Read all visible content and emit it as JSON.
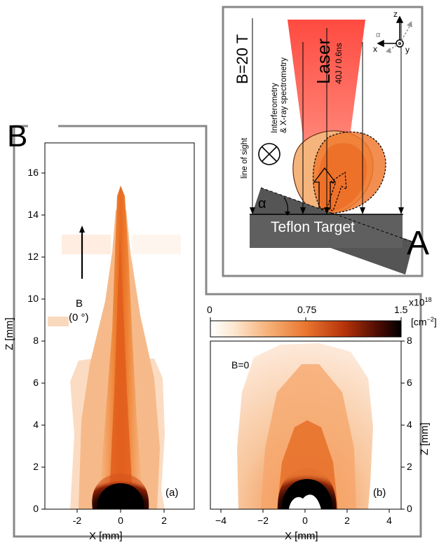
{
  "panel_labels": {
    "A": "A",
    "B": "B"
  },
  "schematic": {
    "field": "B=20 T",
    "diagnostics_line1": "Interferometry",
    "diagnostics_line2": "& X-ray spectrometry",
    "line_of_sight": "line of sight",
    "laser_label": "Laser",
    "laser_params": "40J / 0.6ns",
    "alpha": "α",
    "target": "Teflon Target",
    "axes": {
      "z": "z",
      "x": "x",
      "y": "y",
      "alpha_small": "α"
    }
  },
  "plot_a": {
    "label": "(a)",
    "annotation_line1": "B",
    "annotation_line2": "(0 °)",
    "xlabel": "X [mm]",
    "ylabel": "Z [mm]",
    "xticks": [
      "-2",
      "0",
      "2"
    ],
    "yticks": [
      "0",
      "2",
      "4",
      "6",
      "8",
      "10",
      "12",
      "14",
      "16"
    ]
  },
  "plot_b": {
    "label": "(b)",
    "annotation": "B=0",
    "xlabel": "X [mm]",
    "ylabel": "Z [mm]",
    "xticks": [
      "-4",
      "-2",
      "0",
      "2",
      "4"
    ],
    "yticks": [
      "0",
      "2",
      "4",
      "6",
      "8"
    ]
  },
  "colorbar": {
    "ticks": [
      "0",
      "0.75",
      "1.5"
    ],
    "exponent": "x10",
    "exponent_power": "18",
    "unit": "[cm",
    "unit_power": "−2",
    "unit_close": "]",
    "colors": [
      "#ffffff",
      "#fbe0c6",
      "#f3a05a",
      "#e0621a",
      "#a52608",
      "#4a0b02",
      "#000000"
    ]
  }
}
